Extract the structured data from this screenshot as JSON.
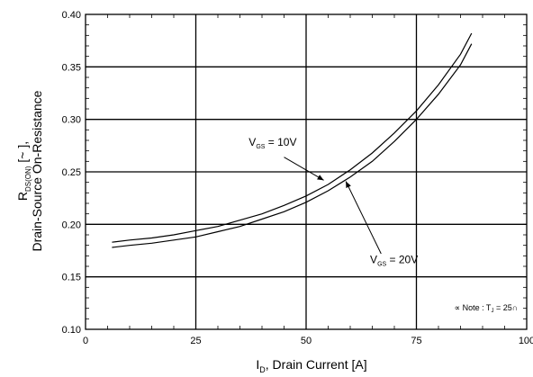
{
  "chart_data": {
    "type": "line",
    "title": "",
    "xlabel": "I_D, Drain Current [A]",
    "xlabel_parts": {
      "main": "I",
      "sub": "D",
      "rest": ", Drain Current [A]"
    },
    "ylabel_line1_parts": {
      "main": "R",
      "sub": "DS(ON)",
      "rest": " [~ ],"
    },
    "ylabel_line2": "Drain-Source On-Resistance",
    "xlim": [
      0,
      100
    ],
    "ylim": [
      0.1,
      0.4
    ],
    "x_ticks": [
      0,
      25,
      50,
      75,
      100
    ],
    "y_ticks": [
      0.1,
      0.15,
      0.2,
      0.25,
      0.3,
      0.35,
      0.4
    ],
    "x_tick_labels": [
      "0",
      "25",
      "50",
      "75",
      "100"
    ],
    "y_tick_labels": [
      "0.10",
      "0.15",
      "0.20",
      "0.25",
      "0.30",
      "0.35",
      "0.40"
    ],
    "grid": true,
    "series": [
      {
        "label": "V_GS = 10V",
        "color": "#000000",
        "x": [
          6,
          10,
          15,
          20,
          25,
          30,
          35,
          40,
          45,
          50,
          55,
          60,
          65,
          70,
          75,
          80,
          85,
          87.5
        ],
        "y": [
          0.183,
          0.185,
          0.187,
          0.19,
          0.194,
          0.198,
          0.204,
          0.21,
          0.218,
          0.227,
          0.238,
          0.252,
          0.268,
          0.287,
          0.308,
          0.333,
          0.362,
          0.382
        ]
      },
      {
        "label": "V_GS = 20V",
        "color": "#000000",
        "x": [
          6,
          10,
          15,
          20,
          25,
          30,
          35,
          40,
          45,
          50,
          55,
          60,
          65,
          70,
          75,
          80,
          85,
          87.5
        ],
        "y": [
          0.178,
          0.18,
          0.182,
          0.185,
          0.188,
          0.193,
          0.198,
          0.205,
          0.212,
          0.221,
          0.232,
          0.245,
          0.26,
          0.279,
          0.3,
          0.324,
          0.352,
          0.372
        ]
      }
    ],
    "annotations": [
      {
        "parts": {
          "main": "V",
          "sub": "GS",
          "rest": " = 10V"
        },
        "text_at": [
          37,
          0.275
        ],
        "arrow_from": [
          45,
          0.264
        ],
        "arrow_to": [
          54,
          0.242
        ]
      },
      {
        "parts": {
          "main": "V",
          "sub": "GS",
          "rest": " = 20V"
        },
        "text_at": [
          64.5,
          0.163
        ],
        "arrow_from": [
          67,
          0.172
        ],
        "arrow_to": [
          59,
          0.241
        ]
      }
    ],
    "note": {
      "text_prefix": "∝ Note : T",
      "sub": "J",
      "text_suffix": " = 25∩",
      "at": [
        98,
        0.118
      ]
    },
    "legend": "none"
  }
}
